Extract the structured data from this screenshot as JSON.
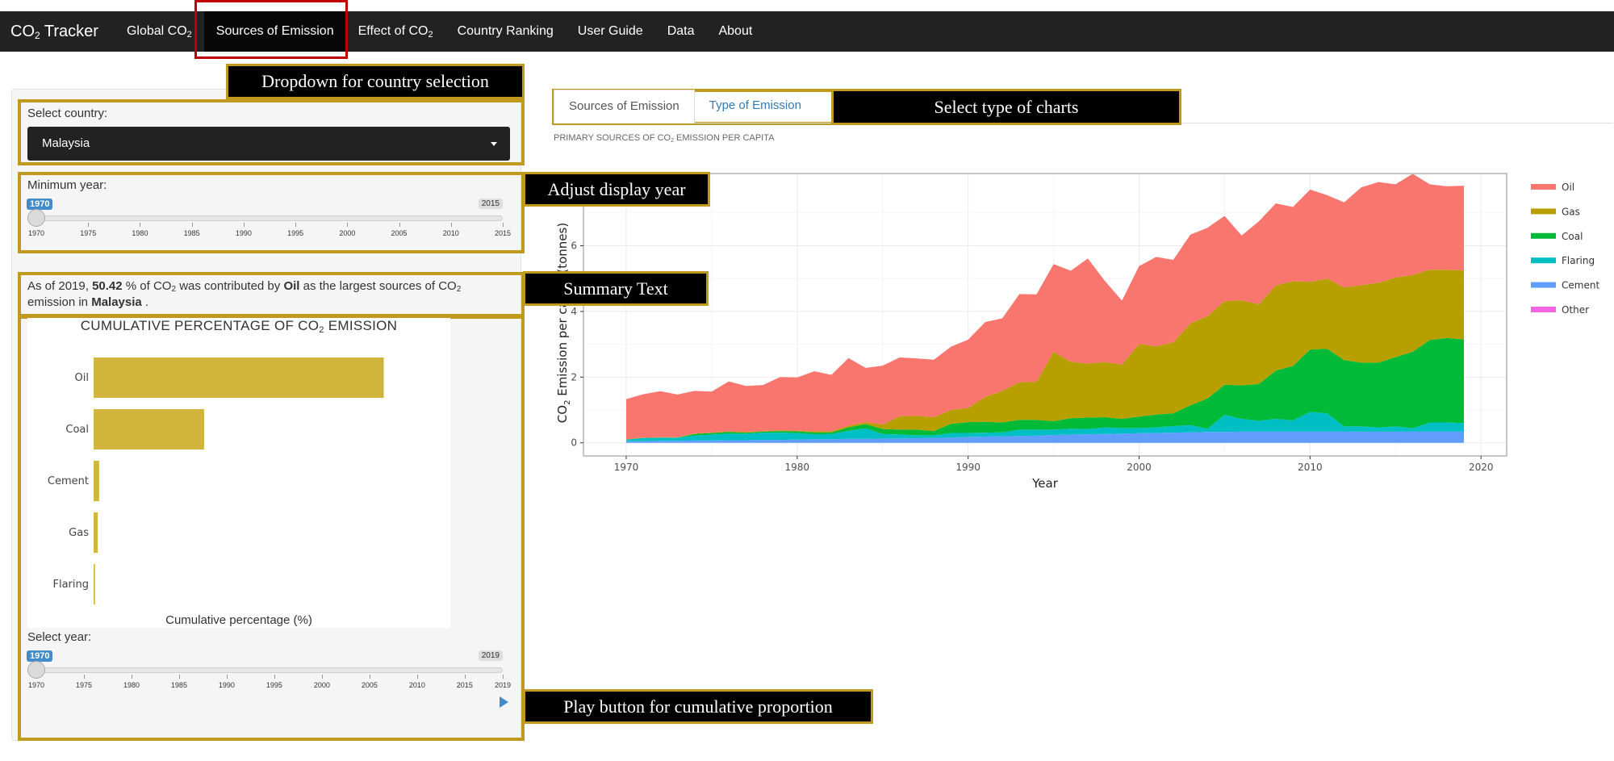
{
  "navbar": {
    "brand_prefix": "CO",
    "brand_sub": "2",
    "brand_suffix": " Tracker",
    "items": [
      {
        "label": "Global CO",
        "sub": "2",
        "active": false
      },
      {
        "label": "Sources of Emission",
        "sub": "",
        "active": true
      },
      {
        "label": "Effect of CO",
        "sub": "2",
        "active": false
      },
      {
        "label": "Country Ranking",
        "sub": "",
        "active": false
      },
      {
        "label": "User Guide",
        "sub": "",
        "active": false
      },
      {
        "label": "Data",
        "sub": "",
        "active": false
      },
      {
        "label": "About",
        "sub": "",
        "active": false
      }
    ]
  },
  "sidebar": {
    "country_label": "Select country:",
    "country_value": "Malaysia",
    "min_year_label": "Minimum year:",
    "min_year_slider": {
      "value": "1970",
      "max": "2015",
      "ticks": [
        "1970",
        "1975",
        "1980",
        "1985",
        "1990",
        "1995",
        "2000",
        "2005",
        "2010",
        "2015"
      ]
    },
    "summary": {
      "p1": "As of 2019, ",
      "percent": "50.42",
      "p2": " % of CO",
      "sub1": "2",
      "p3": " was contributed by ",
      "source": "Oil",
      "p4": " as the largest sources of CO",
      "sub2": "2",
      "p5": " emission in ",
      "country": "Malaysia",
      "p6": " ."
    },
    "select_year_label": "Select year:",
    "select_year_slider": {
      "value": "1970",
      "max": "2019",
      "ticks": [
        "1970",
        "1975",
        "1980",
        "1985",
        "1990",
        "1995",
        "2000",
        "2005",
        "2010",
        "2015",
        "2019"
      ]
    }
  },
  "tabs": [
    {
      "label": "Sources of Emission",
      "selected": true
    },
    {
      "label": "Type of Emission",
      "selected": false
    }
  ],
  "subtitle": {
    "prefix": "PRIMARY SOURCES OF CO",
    "sub": "2",
    "suffix": " EMISSION PER CAPITA"
  },
  "annotations": {
    "dropdown": "Dropdown for country selection",
    "charts": "Select type of charts",
    "year": "Adjust display year",
    "summary": "Summary Text",
    "play": "Play button for cumulative proportion"
  },
  "chart_data": [
    {
      "type": "bar",
      "orientation": "horizontal",
      "title_prefix": "CUMULATIVE PERCENTAGE OF CO",
      "title_sub": "2",
      "title_suffix": " EMISSION",
      "xlabel": "Cumulative percentage (%)",
      "categories": [
        "Oil",
        "Coal",
        "Cement",
        "Gas",
        "Flaring"
      ],
      "values": [
        63,
        24,
        1.2,
        0.9,
        0.3
      ],
      "xlim": [
        0,
        75
      ],
      "color": "#d1b43c"
    },
    {
      "type": "area",
      "stacked": true,
      "xlabel": "Year",
      "ylabel_prefix": "CO",
      "ylabel_sub": "2",
      "ylabel_suffix": " Emission per capita (tonnes)",
      "xlim": [
        1967.5,
        2021.5
      ],
      "ylim": [
        -0.4,
        8.2
      ],
      "xticks": [
        1970,
        1980,
        1990,
        2000,
        2010,
        2020
      ],
      "yticks": [
        0,
        2,
        4,
        6
      ],
      "grid": true,
      "legend_position": "right",
      "legend": [
        "Oil",
        "Gas",
        "Coal",
        "Flaring",
        "Cement",
        "Other"
      ],
      "x": [
        1970,
        1971,
        1972,
        1973,
        1974,
        1975,
        1976,
        1977,
        1978,
        1979,
        1980,
        1981,
        1982,
        1983,
        1984,
        1985,
        1986,
        1987,
        1988,
        1989,
        1990,
        1991,
        1992,
        1993,
        1994,
        1995,
        1996,
        1997,
        1998,
        1999,
        2000,
        2001,
        2002,
        2003,
        2004,
        2005,
        2006,
        2007,
        2008,
        2009,
        2010,
        2011,
        2012,
        2013,
        2014,
        2015,
        2016,
        2017,
        2018,
        2019
      ],
      "series": [
        {
          "name": "Cement",
          "color": "#619cff",
          "values": [
            0.05,
            0.05,
            0.06,
            0.06,
            0.07,
            0.07,
            0.08,
            0.08,
            0.09,
            0.09,
            0.1,
            0.11,
            0.11,
            0.12,
            0.12,
            0.13,
            0.13,
            0.14,
            0.15,
            0.16,
            0.18,
            0.19,
            0.2,
            0.21,
            0.22,
            0.24,
            0.25,
            0.26,
            0.27,
            0.28,
            0.29,
            0.3,
            0.31,
            0.32,
            0.33,
            0.33,
            0.34,
            0.34,
            0.34,
            0.34,
            0.34,
            0.34,
            0.34,
            0.34,
            0.34,
            0.34,
            0.34,
            0.34,
            0.34,
            0.34
          ]
        },
        {
          "name": "Flaring",
          "color": "#00bfc4",
          "values": [
            0.05,
            0.1,
            0.1,
            0.1,
            0.15,
            0.18,
            0.2,
            0.2,
            0.22,
            0.22,
            0.2,
            0.15,
            0.16,
            0.25,
            0.32,
            0.14,
            0.12,
            0.09,
            0.08,
            0.14,
            0.12,
            0.12,
            0.12,
            0.19,
            0.18,
            0.16,
            0.18,
            0.16,
            0.2,
            0.17,
            0.16,
            0.17,
            0.2,
            0.22,
            0.1,
            0.52,
            0.39,
            0.33,
            0.39,
            0.34,
            0.6,
            0.56,
            0.16,
            0.16,
            0.13,
            0.16,
            0.1,
            0.28,
            0.28,
            0.26
          ]
        },
        {
          "name": "Coal",
          "color": "#00ba38",
          "values": [
            0.0,
            0.0,
            0.0,
            0.0,
            0.05,
            0.05,
            0.05,
            0.03,
            0.03,
            0.05,
            0.05,
            0.06,
            0.05,
            0.1,
            0.13,
            0.15,
            0.15,
            0.17,
            0.13,
            0.28,
            0.33,
            0.33,
            0.3,
            0.3,
            0.3,
            0.26,
            0.32,
            0.35,
            0.31,
            0.28,
            0.35,
            0.39,
            0.39,
            0.6,
            0.92,
            0.92,
            1.02,
            1.12,
            1.47,
            1.66,
            1.9,
            1.96,
            2.02,
            1.94,
            1.97,
            2.11,
            2.33,
            2.51,
            2.57,
            2.55
          ]
        },
        {
          "name": "Gas",
          "color": "#b79f00",
          "values": [
            0.01,
            0.01,
            0.01,
            0.01,
            0.01,
            0.01,
            0.02,
            0.02,
            0.02,
            0.02,
            0.02,
            0.03,
            0.03,
            0.05,
            0.06,
            0.13,
            0.41,
            0.42,
            0.42,
            0.42,
            0.43,
            0.76,
            0.96,
            1.14,
            1.16,
            2.11,
            1.72,
            1.64,
            1.68,
            1.65,
            2.21,
            2.08,
            2.16,
            2.5,
            2.51,
            2.54,
            2.59,
            2.43,
            2.59,
            2.58,
            2.06,
            2.14,
            2.21,
            2.36,
            2.43,
            2.42,
            2.34,
            2.14,
            2.08,
            2.1
          ]
        },
        {
          "name": "Oil",
          "color": "#f8766d",
          "values": [
            1.22,
            1.32,
            1.4,
            1.3,
            1.3,
            1.25,
            1.52,
            1.4,
            1.4,
            1.62,
            1.62,
            1.83,
            1.72,
            2.06,
            1.65,
            1.8,
            1.79,
            1.75,
            1.75,
            1.93,
            2.08,
            2.28,
            2.21,
            2.69,
            2.66,
            2.67,
            2.77,
            3.2,
            2.47,
            1.95,
            2.37,
            2.72,
            2.51,
            2.7,
            2.69,
            2.6,
            1.97,
            2.52,
            2.5,
            2.26,
            2.81,
            2.54,
            2.59,
            2.98,
            3.07,
            2.84,
            3.08,
            2.6,
            2.54,
            2.58
          ]
        },
        {
          "name": "Other",
          "color": "#f564e3",
          "values": [
            0,
            0,
            0,
            0,
            0,
            0,
            0,
            0,
            0,
            0,
            0,
            0,
            0,
            0,
            0,
            0,
            0,
            0,
            0,
            0,
            0,
            0,
            0,
            0,
            0,
            0,
            0,
            0,
            0,
            0,
            0,
            0,
            0,
            0,
            0,
            0,
            0,
            0,
            0,
            0,
            0,
            0,
            0,
            0,
            0,
            0,
            0,
            0,
            0,
            0
          ]
        }
      ]
    }
  ]
}
